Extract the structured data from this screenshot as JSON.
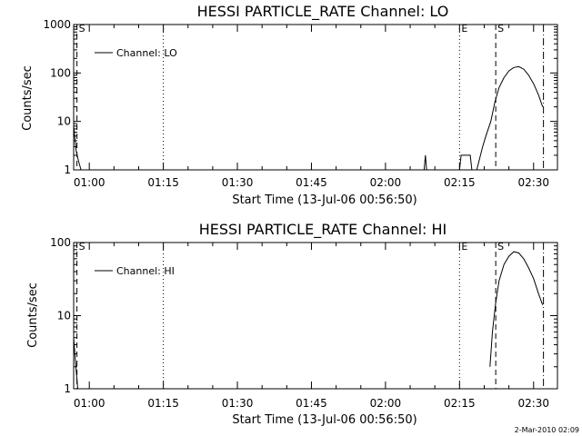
{
  "footer": {
    "date_stamp": "2-Mar-2010 02:09"
  },
  "chart_data": [
    {
      "type": "line",
      "title": "HESSI PARTICLE_RATE Channel: LO",
      "xlabel": "Start Time (13-Jul-06 00:56:50)",
      "ylabel": "Counts/sec",
      "yscale": "log",
      "ylim": [
        1,
        1000
      ],
      "xlim_minutes_since_start": [
        0,
        98
      ],
      "x_ticks": [
        "01:00",
        "01:15",
        "01:30",
        "01:45",
        "02:00",
        "02:15",
        "02:30"
      ],
      "y_ticks": [
        "1",
        "10",
        "100",
        "1000"
      ],
      "legend": {
        "label": "Channel: LO",
        "placement": "top-left"
      },
      "markers": [
        {
          "label": "S",
          "style": "dashed",
          "time": "00:57:30"
        },
        {
          "label": "",
          "style": "dotted",
          "time": "01:15:00"
        },
        {
          "label": "E",
          "style": "dotted",
          "time": "02:15:00"
        },
        {
          "label": "S",
          "style": "dashed",
          "time": "02:22:20"
        },
        {
          "label": "",
          "style": "dashdot",
          "time": "02:32:00"
        }
      ],
      "series": [
        {
          "name": "Channel: LO",
          "segments": [
            {
              "time": [
                "00:56:50",
                "00:57:20",
                "00:57:50",
                "00:58:20"
              ],
              "values": [
                8,
                2.5,
                1.5,
                1
              ]
            },
            {
              "time": [
                "02:07:50",
                "02:08:05",
                "02:08:20"
              ],
              "values": [
                1,
                2,
                1
              ]
            },
            {
              "time": [
                "02:15:00",
                "02:15:20",
                "02:17:10",
                "02:17:30",
                "02:18:30",
                "02:19:40",
                "02:20:20",
                "02:21:20",
                "02:22:10",
                "02:23:00",
                "02:24:00",
                "02:25:00",
                "02:26:00",
                "02:27:00",
                "02:28:00",
                "02:29:00",
                "02:30:00",
                "02:31:00",
                "02:31:50"
              ],
              "values": [
                1,
                2,
                2,
                1,
                1,
                3,
                5,
                10,
                25,
                50,
                80,
                110,
                130,
                135,
                120,
                90,
                60,
                35,
                20
              ]
            }
          ]
        }
      ]
    },
    {
      "type": "line",
      "title": "HESSI PARTICLE_RATE Channel: HI",
      "xlabel": "Start Time (13-Jul-06 00:56:50)",
      "ylabel": "Counts/sec",
      "yscale": "log",
      "ylim": [
        1,
        100
      ],
      "xlim_minutes_since_start": [
        0,
        98
      ],
      "x_ticks": [
        "01:00",
        "01:15",
        "01:30",
        "01:45",
        "02:00",
        "02:15",
        "02:30"
      ],
      "y_ticks": [
        "1",
        "10",
        "100"
      ],
      "legend": {
        "label": "Channel: HI",
        "placement": "top-left"
      },
      "markers": [
        {
          "label": "S",
          "style": "dashed",
          "time": "00:57:30"
        },
        {
          "label": "",
          "style": "dotted",
          "time": "01:15:00"
        },
        {
          "label": "E",
          "style": "dotted",
          "time": "02:15:00"
        },
        {
          "label": "S",
          "style": "dashed",
          "time": "02:22:20"
        },
        {
          "label": "",
          "style": "dashdot",
          "time": "02:32:00"
        }
      ],
      "series": [
        {
          "name": "Channel: HI",
          "segments": [
            {
              "time": [
                "00:56:50",
                "00:57:10",
                "00:57:40"
              ],
              "values": [
                5,
                2.5,
                1
              ]
            },
            {
              "time": [
                "02:21:10",
                "02:21:40",
                "02:22:20",
                "02:23:00",
                "02:24:00",
                "02:25:00",
                "02:26:00",
                "02:27:00",
                "02:28:00",
                "02:29:00",
                "02:30:00",
                "02:31:00",
                "02:31:50"
              ],
              "values": [
                2,
                6,
                15,
                30,
                50,
                65,
                75,
                72,
                60,
                45,
                32,
                20,
                14
              ]
            }
          ]
        }
      ]
    }
  ]
}
